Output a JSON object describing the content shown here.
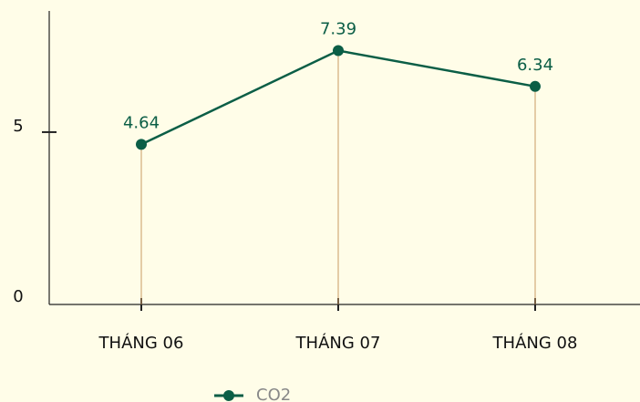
{
  "chart_data": {
    "type": "line",
    "categories": [
      "THÁNG 06",
      "THÁNG 07",
      "THÁNG 08"
    ],
    "series": [
      {
        "name": "CO2",
        "color": "#0b5e46",
        "values": [
          4.64,
          7.39,
          6.34
        ]
      }
    ],
    "ylim": [
      0,
      8.5
    ],
    "yticks": [
      0,
      5
    ],
    "drop_line_color": "#c89a64",
    "legend": "bottom"
  }
}
